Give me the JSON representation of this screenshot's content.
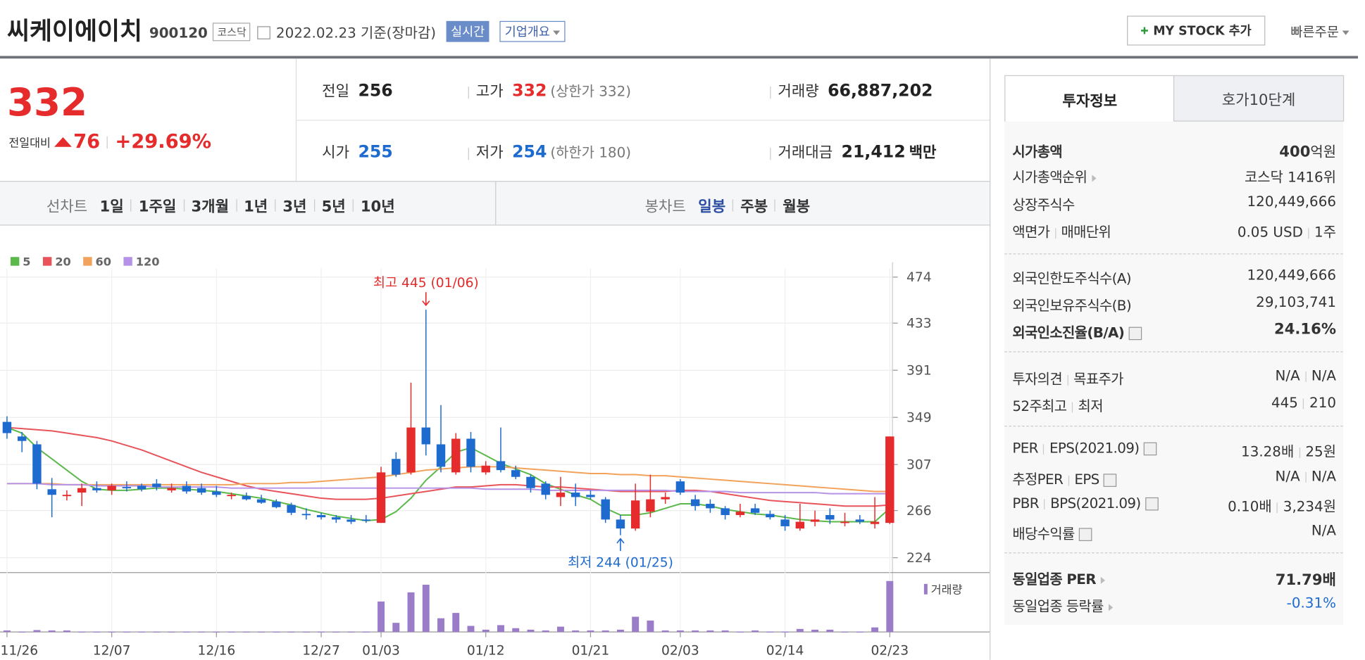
{
  "header": {
    "name": "씨케이에이치",
    "code": "900120",
    "market": "코스닥",
    "date": "2022.02.23 기준(장마감)",
    "realtime": "실시간",
    "overview": "기업개요",
    "my_stock": "MY STOCK 추가",
    "quick_order": "빠른주문"
  },
  "quote": {
    "price": "332",
    "change_label": "전일대비",
    "change": "76",
    "change_pct": "+29.69%",
    "prev_label": "전일",
    "prev": "256",
    "high_label": "고가",
    "high": "332",
    "upper_limit": "(상한가 332)",
    "volume_label": "거래량",
    "volume": "66,887,202",
    "open_label": "시가",
    "open": "255",
    "low_label": "저가",
    "low": "254",
    "lower_limit": "(하한가 180)",
    "amount_label": "거래대금",
    "amount": "21,412",
    "amount_unit": "백만"
  },
  "chart_tabs": {
    "line_label": "선차트",
    "line": [
      "1일",
      "1주일",
      "3개월",
      "1년",
      "3년",
      "5년",
      "10년"
    ],
    "candle_label": "봉차트",
    "candle": [
      "일봉",
      "주봉",
      "월봉"
    ]
  },
  "chart_data": {
    "type": "candlestick",
    "categories": [
      "11/26",
      null,
      null,
      null,
      null,
      null,
      null,
      "12/07",
      null,
      null,
      null,
      null,
      null,
      null,
      "12/16",
      null,
      null,
      null,
      null,
      null,
      null,
      "12/27",
      null,
      null,
      null,
      "01/03",
      null,
      null,
      null,
      null,
      null,
      null,
      "01/12",
      null,
      null,
      null,
      null,
      null,
      null,
      "01/21",
      null,
      null,
      null,
      null,
      null,
      "02/03",
      null,
      null,
      null,
      null,
      null,
      null,
      "02/14",
      null,
      null,
      null,
      null,
      null,
      null,
      "02/23"
    ],
    "open": [
      345,
      332,
      325,
      285,
      280,
      282,
      286,
      284,
      287,
      288,
      290,
      284,
      288,
      286,
      283,
      279,
      279,
      276,
      274,
      271,
      263,
      262,
      260,
      258,
      258,
      255,
      312,
      300,
      340,
      325,
      300,
      330,
      300,
      310,
      302,
      296,
      290,
      278,
      282,
      280,
      276,
      258,
      250,
      265,
      276,
      292,
      276,
      272,
      268,
      262,
      268,
      263,
      258,
      250,
      256,
      262,
      255,
      258,
      254,
      255
    ],
    "high": [
      350,
      336,
      328,
      295,
      284,
      290,
      292,
      290,
      292,
      290,
      294,
      290,
      292,
      290,
      288,
      282,
      282,
      280,
      276,
      273,
      268,
      264,
      262,
      262,
      262,
      305,
      318,
      380,
      445,
      360,
      335,
      336,
      310,
      340,
      306,
      298,
      292,
      296,
      290,
      284,
      278,
      262,
      290,
      298,
      282,
      294,
      280,
      276,
      270,
      272,
      272,
      266,
      262,
      272,
      266,
      268,
      264,
      262,
      278,
      332
    ],
    "low": [
      330,
      318,
      285,
      260,
      275,
      270,
      282,
      280,
      283,
      283,
      284,
      282,
      281,
      280,
      278,
      276,
      275,
      272,
      268,
      262,
      258,
      258,
      255,
      254,
      255,
      255,
      296,
      298,
      315,
      300,
      298,
      300,
      298,
      300,
      294,
      282,
      276,
      270,
      270,
      276,
      255,
      244,
      248,
      260,
      272,
      280,
      266,
      264,
      258,
      260,
      262,
      258,
      248,
      248,
      252,
      254,
      252,
      254,
      250,
      254
    ],
    "close": [
      335,
      328,
      290,
      280,
      280,
      286,
      284,
      288,
      286,
      285,
      287,
      286,
      283,
      282,
      280,
      280,
      276,
      273,
      269,
      264,
      262,
      260,
      258,
      256,
      257,
      300,
      298,
      340,
      325,
      305,
      330,
      305,
      306,
      302,
      296,
      286,
      280,
      282,
      278,
      278,
      258,
      250,
      275,
      276,
      278,
      282,
      270,
      268,
      262,
      265,
      264,
      260,
      252,
      256,
      258,
      258,
      256,
      256,
      256,
      332
    ],
    "volume": [
      2000000,
      500000,
      2500000,
      2000000,
      2000000,
      500000,
      500000,
      500000,
      500000,
      500000,
      500000,
      500000,
      500000,
      500000,
      500000,
      500000,
      500000,
      500000,
      500000,
      500000,
      500000,
      500000,
      500000,
      500000,
      500000,
      40000000,
      12000000,
      52000000,
      62000000,
      18000000,
      25000000,
      8000000,
      3000000,
      9000000,
      5000000,
      3000000,
      2000000,
      7000000,
      2000000,
      2000000,
      2000000,
      3000000,
      20000000,
      15000000,
      2000000,
      2000000,
      2000000,
      2000000,
      2000000,
      500000,
      2000000,
      500000,
      500000,
      4000000,
      3000000,
      3000000,
      500000,
      500000,
      6000000,
      66887202
    ],
    "ylim": [
      224,
      474
    ],
    "yticks": [
      224,
      266,
      307,
      349,
      391,
      433,
      474
    ],
    "volume_lim": [
      0,
      78000000
    ],
    "volume_label": "거래량",
    "high_note": "최고 445 (01/06)",
    "low_note": "최저 244 (01/25)",
    "up_color": "#e52b2b",
    "down_color": "#1e6bd0",
    "volume_color": "#9a7cc9",
    "grid": true,
    "ma": [
      {
        "name": "5",
        "color": "#5ab94a",
        "values": [
          340,
          335,
          322,
          312,
          302,
          292,
          285,
          284,
          284,
          285,
          286,
          286,
          285,
          284,
          283,
          281,
          279,
          277,
          274,
          271,
          267,
          264,
          261,
          259,
          257,
          258,
          265,
          277,
          293,
          305,
          318,
          322,
          315,
          308,
          303,
          298,
          290,
          285,
          280,
          276,
          268,
          262,
          262,
          264,
          268,
          272,
          272,
          270,
          267,
          265,
          263,
          262,
          260,
          258,
          257,
          256,
          256,
          256,
          256,
          268
        ]
      },
      {
        "name": "20",
        "color": "#e8545a",
        "values": [
          340,
          339,
          338,
          337,
          335,
          333,
          331,
          328,
          324,
          320,
          315,
          310,
          305,
          300,
          296,
          292,
          288,
          285,
          283,
          281,
          279,
          277,
          276,
          276,
          276,
          277,
          279,
          281,
          283,
          285,
          287,
          287,
          288,
          289,
          289,
          288,
          287,
          287,
          286,
          285,
          284,
          283,
          283,
          283,
          283,
          284,
          284,
          283,
          281,
          279,
          277,
          275,
          274,
          273,
          272,
          271,
          270,
          270,
          270,
          271
        ]
      },
      {
        "name": "60",
        "color": "#f2a25a",
        "values": [
          290,
          290,
          290,
          290,
          289,
          289,
          289,
          289,
          289,
          289,
          289,
          289,
          289,
          289,
          289,
          289,
          290,
          290,
          290,
          291,
          291,
          292,
          293,
          294,
          295,
          296,
          298,
          300,
          302,
          303,
          304,
          305,
          305,
          305,
          304,
          303,
          302,
          301,
          300,
          299,
          299,
          298,
          298,
          297,
          297,
          296,
          295,
          294,
          293,
          292,
          291,
          290,
          289,
          288,
          287,
          286,
          285,
          284,
          283,
          283
        ]
      },
      {
        "name": "120",
        "color": "#b592e8",
        "values": [
          290,
          290,
          290,
          289,
          289,
          289,
          288,
          288,
          288,
          288,
          287,
          287,
          287,
          287,
          287,
          286,
          286,
          286,
          286,
          286,
          286,
          286,
          286,
          286,
          286,
          286,
          286,
          286,
          286,
          286,
          286,
          286,
          285,
          285,
          285,
          285,
          284,
          284,
          284,
          284,
          284,
          284,
          284,
          284,
          284,
          283,
          283,
          283,
          283,
          282,
          282,
          282,
          282,
          282,
          282,
          281,
          281,
          281,
          281,
          281
        ]
      }
    ]
  },
  "invest": {
    "tabs": [
      "투자정보",
      "호가10단계"
    ],
    "rows": [
      {
        "label": [
          "시가총액"
        ],
        "value": [
          "400",
          "억원"
        ]
      },
      {
        "label": [
          "시가총액순위"
        ],
        "value": [
          "코스닥 1416위"
        ]
      },
      {
        "label": [
          "상장주식수"
        ],
        "value": [
          "120,449,666"
        ]
      },
      {
        "label": [
          "액면가",
          "매매단위"
        ],
        "value": [
          "0.05 USD",
          "1주"
        ]
      },
      {
        "label": [
          "외국인한도주식수(A)"
        ],
        "value": [
          "120,449,666"
        ]
      },
      {
        "label": [
          "외국인보유주식수(B)"
        ],
        "value": [
          "29,103,741"
        ]
      },
      {
        "label": [
          "외국인소진율(B/A)"
        ],
        "value": [
          "24.16%"
        ]
      },
      {
        "label": [
          "투자의견",
          "목표주가"
        ],
        "value": [
          "N/A",
          "N/A"
        ]
      },
      {
        "label": [
          "52주최고",
          "최저"
        ],
        "value": [
          "445",
          "210"
        ]
      },
      {
        "label": [
          "PER",
          "EPS(2021.09)"
        ],
        "value": [
          "13.28배",
          "25원"
        ]
      },
      {
        "label": [
          "추정PER",
          "EPS"
        ],
        "value": [
          "N/A",
          "N/A"
        ]
      },
      {
        "label": [
          "PBR",
          "BPS(2021.09)"
        ],
        "value": [
          "0.10배",
          "3,234원"
        ]
      },
      {
        "label": [
          "배당수익률"
        ],
        "value": [
          "N/A"
        ]
      },
      {
        "label": [
          "동일업종 PER"
        ],
        "value": [
          "71.79배"
        ]
      },
      {
        "label": [
          "동일업종 등락률"
        ],
        "value": [
          "-0.31%"
        ]
      }
    ]
  }
}
